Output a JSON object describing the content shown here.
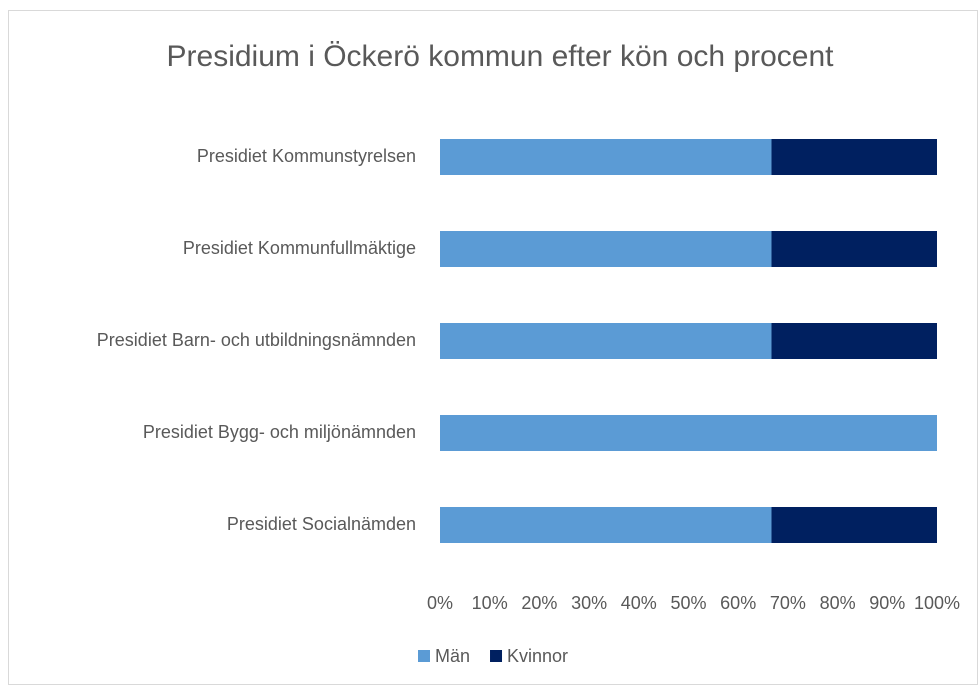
{
  "chart_data": {
    "type": "stacked-bar-horizontal",
    "title": "Presidium i Öckerö kommun efter kön och procent",
    "categories": [
      "Presidiet Kommunstyrelsen",
      "Presidiet Kommunfullmäktige",
      "Presidiet Barn- och utbildningsnämnden",
      "Presidiet Bygg- och miljönämnden",
      "Presidiet Socialnämden"
    ],
    "series": [
      {
        "name": "Män",
        "color": "#5b9bd5",
        "values": [
          66.7,
          66.7,
          66.7,
          100,
          66.7
        ]
      },
      {
        "name": "Kvinnor",
        "color": "#002060",
        "values": [
          33.3,
          33.3,
          33.3,
          0,
          33.3
        ]
      }
    ],
    "xlim": [
      0,
      100
    ],
    "xticks": [
      {
        "value": 0,
        "label": "0%"
      },
      {
        "value": 10,
        "label": "10%"
      },
      {
        "value": 20,
        "label": "20%"
      },
      {
        "value": 30,
        "label": "30%"
      },
      {
        "value": 40,
        "label": "40%"
      },
      {
        "value": 50,
        "label": "50%"
      },
      {
        "value": 60,
        "label": "60%"
      },
      {
        "value": 70,
        "label": "70%"
      },
      {
        "value": 80,
        "label": "80%"
      },
      {
        "value": 90,
        "label": "90%"
      },
      {
        "value": 100,
        "label": "100%"
      }
    ],
    "grid": false,
    "legend": "bottom"
  }
}
